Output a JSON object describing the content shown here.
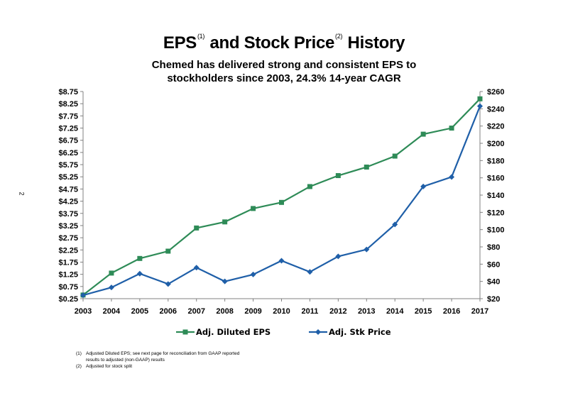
{
  "header": {
    "title_eps": "EPS",
    "title_note1": "(1)",
    "title_mid": "and Stock Price",
    "title_note2": "(2)",
    "title_end": "History",
    "subtitle_line1": "Chemed has delivered strong and consistent EPS to",
    "subtitle_line2": "stockholders since 2003, 24.3% 14-year CAGR"
  },
  "page_number": "2",
  "footnotes": [
    {
      "num": "(1)",
      "text": "Adjusted Diluted EPS; see next page for reconciliation from GAAP reported"
    },
    {
      "num": "",
      "text": "results to adjusted (non-GAAP) results"
    },
    {
      "num": "(2)",
      "text": "Adjusted for stock split"
    }
  ],
  "chart_data": {
    "type": "line",
    "x": [
      "2003",
      "2004",
      "2005",
      "2006",
      "2007",
      "2008",
      "2009",
      "2010",
      "2011",
      "2012",
      "2013",
      "2014",
      "2015",
      "2016",
      "2017"
    ],
    "series": [
      {
        "name": "Adj. Diluted EPS",
        "axis": "left",
        "color": "#2e8b57",
        "marker": "square",
        "values": [
          0.4,
          1.3,
          1.9,
          2.2,
          3.15,
          3.4,
          3.95,
          4.2,
          4.85,
          5.3,
          5.65,
          6.1,
          7.0,
          7.25,
          8.45
        ]
      },
      {
        "name": "Adj. Stk Price",
        "axis": "right",
        "color": "#1f5fa8",
        "marker": "diamond",
        "values": [
          24,
          33,
          49,
          37,
          56,
          40,
          48,
          64,
          51,
          69,
          77,
          106,
          150,
          161,
          243
        ]
      }
    ],
    "left_axis": {
      "ylim": [
        0.25,
        8.75
      ],
      "ticks": [
        "$0.25",
        "$0.75",
        "$1.25",
        "$1.75",
        "$2.25",
        "$2.75",
        "$3.25",
        "$3.75",
        "$4.25",
        "$4.75",
        "$5.25",
        "$5.75",
        "$6.25",
        "$6.75",
        "$7.25",
        "$7.75",
        "$8.25",
        "$8.75"
      ]
    },
    "right_axis": {
      "ylim": [
        20,
        260
      ],
      "ticks": [
        "$20",
        "$40",
        "$60",
        "$80",
        "$100",
        "$120",
        "$140",
        "$160",
        "$180",
        "$200",
        "$220",
        "$240",
        "$260"
      ]
    },
    "legend_position": "bottom",
    "grid": false
  }
}
